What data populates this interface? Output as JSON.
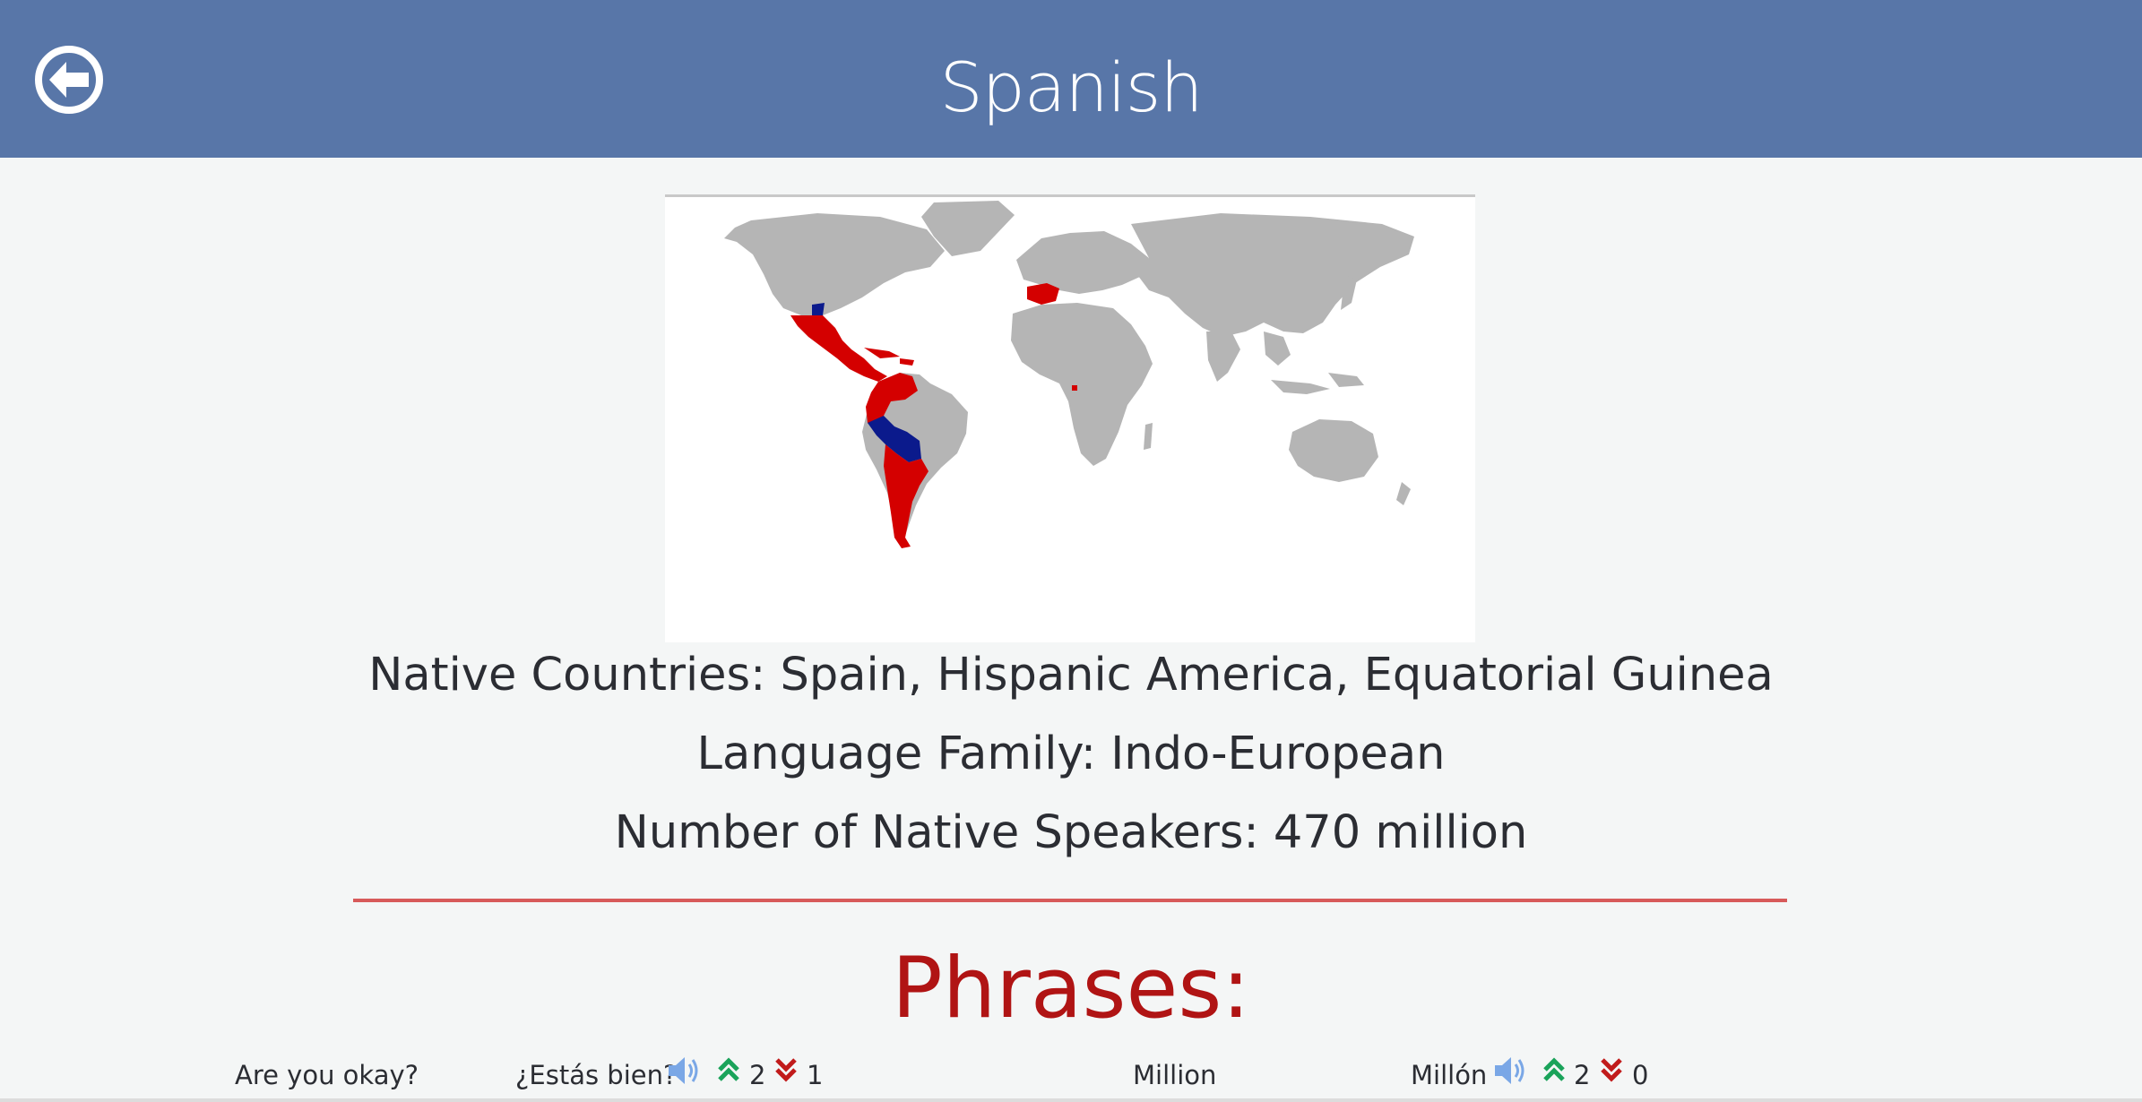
{
  "header": {
    "title": "Spanish",
    "back_icon": "arrow-left-circle-icon",
    "background_color": "#5876a8"
  },
  "map": {
    "description_icon": "world-map",
    "colors": {
      "official_majority": "#d40000",
      "official_minority": "#0b1a8c",
      "other": "#b5b5b5"
    }
  },
  "info": {
    "native_countries": "Native Countries: Spain, Hispanic America, Equatorial Guinea",
    "language_family": "Language Family: Indo-European",
    "native_speakers": "Number of Native Speakers: 470 million"
  },
  "phrases": {
    "heading": "Phrases:",
    "heading_color": "#b01414",
    "items": [
      {
        "english": "Are you okay?",
        "spanish": "¿Estás bien?",
        "upvotes": "2",
        "downvotes": "1"
      },
      {
        "english": "Million",
        "spanish": "Millón",
        "upvotes": "2",
        "downvotes": "0"
      }
    ]
  }
}
